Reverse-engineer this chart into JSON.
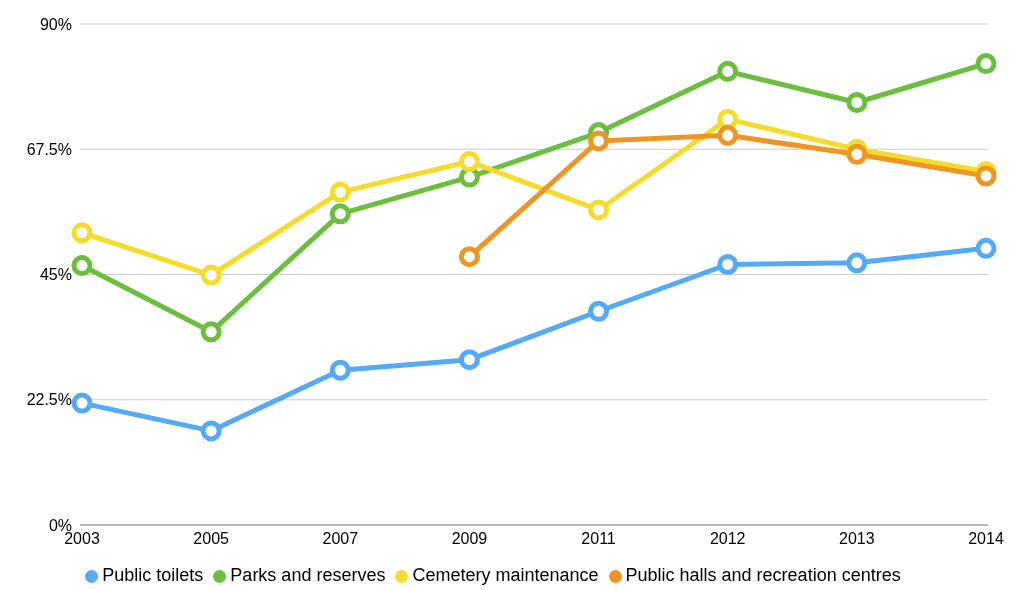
{
  "chart_data": {
    "type": "line",
    "categories": [
      "2003",
      "2005",
      "2007",
      "2009",
      "2011",
      "2012",
      "2013",
      "2014"
    ],
    "series": [
      {
        "name": "Public toilets",
        "color": "#55aaf5",
        "values": [
          21.9,
          16.9,
          27.8,
          29.7,
          38.4,
          46.8,
          47.1,
          49.7
        ]
      },
      {
        "name": "Parks and reserves",
        "color": "#6cbf3e",
        "values": [
          46.6,
          34.7,
          55.9,
          62.5,
          70.5,
          81.5,
          75.9,
          82.9
        ]
      },
      {
        "name": "Cemetery maintenance",
        "color": "#f5dc2a",
        "values": [
          52.5,
          44.9,
          59.8,
          65.3,
          56.6,
          72.9,
          67.5,
          63.5
        ]
      },
      {
        "name": "Public halls and recreation centres",
        "color": "#ef9524",
        "values": [
          null,
          null,
          null,
          48.2,
          69.0,
          70.0,
          66.6,
          62.7
        ]
      }
    ],
    "ylim": [
      0,
      90
    ],
    "yticks": [
      {
        "value": 0,
        "label": "0%"
      },
      {
        "value": 22.5,
        "label": "22.5%"
      },
      {
        "value": 45,
        "label": "45%"
      },
      {
        "value": 67.5,
        "label": "67.5%"
      },
      {
        "value": 90,
        "label": "90%"
      }
    ],
    "grid": "y",
    "legend": "bottom",
    "marker": "circle",
    "line_style": "solid"
  }
}
